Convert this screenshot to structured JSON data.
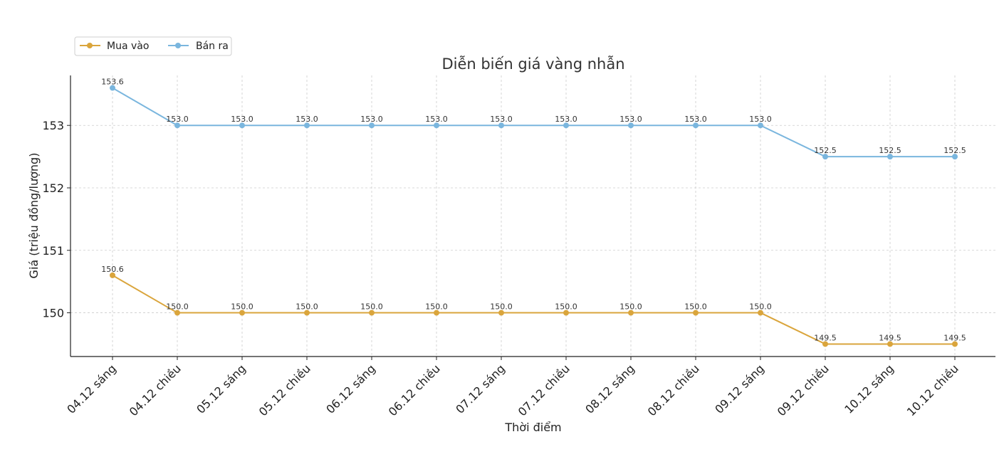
{
  "chart_data": {
    "type": "line",
    "title": "Diễn biến giá vàng nhẫn",
    "xlabel": "Thời điểm",
    "ylabel": "Giá (triệu đồng/lượng)",
    "categories": [
      "04.12 sáng",
      "04.12 chiều",
      "05.12 sáng",
      "05.12 chiều",
      "06.12 sáng",
      "06.12 chiều",
      "07.12 sáng",
      "07.12 chiều",
      "08.12 sáng",
      "08.12 chiều",
      "09.12 sáng",
      "09.12 chiều",
      "10.12 sáng",
      "10.12 chiều"
    ],
    "series": [
      {
        "name": "Mua vào",
        "color": "#DAA53C",
        "values": [
          150.6,
          150.0,
          150.0,
          150.0,
          150.0,
          150.0,
          150.0,
          150.0,
          150.0,
          150.0,
          150.0,
          149.5,
          149.5,
          149.5
        ],
        "labels": [
          "150.6",
          "150.0",
          "150.0",
          "150.0",
          "150.0",
          "150.0",
          "150.0",
          "150.0",
          "150.0",
          "150.0",
          "150.0",
          "149.5",
          "149.5",
          "149.5"
        ]
      },
      {
        "name": "Bán ra",
        "color": "#7AB6DE",
        "values": [
          153.6,
          153.0,
          153.0,
          153.0,
          153.0,
          153.0,
          153.0,
          153.0,
          153.0,
          153.0,
          153.0,
          152.5,
          152.5,
          152.5
        ],
        "labels": [
          "153.6",
          "153.0",
          "153.0",
          "153.0",
          "153.0",
          "153.0",
          "153.0",
          "153.0",
          "153.0",
          "153.0",
          "153.0",
          "152.5",
          "152.5",
          "152.5"
        ]
      }
    ],
    "yticks": [
      150,
      151,
      152,
      153
    ],
    "ylim": [
      149.3,
      153.8
    ],
    "grid": true,
    "legend_position": "top-left"
  }
}
